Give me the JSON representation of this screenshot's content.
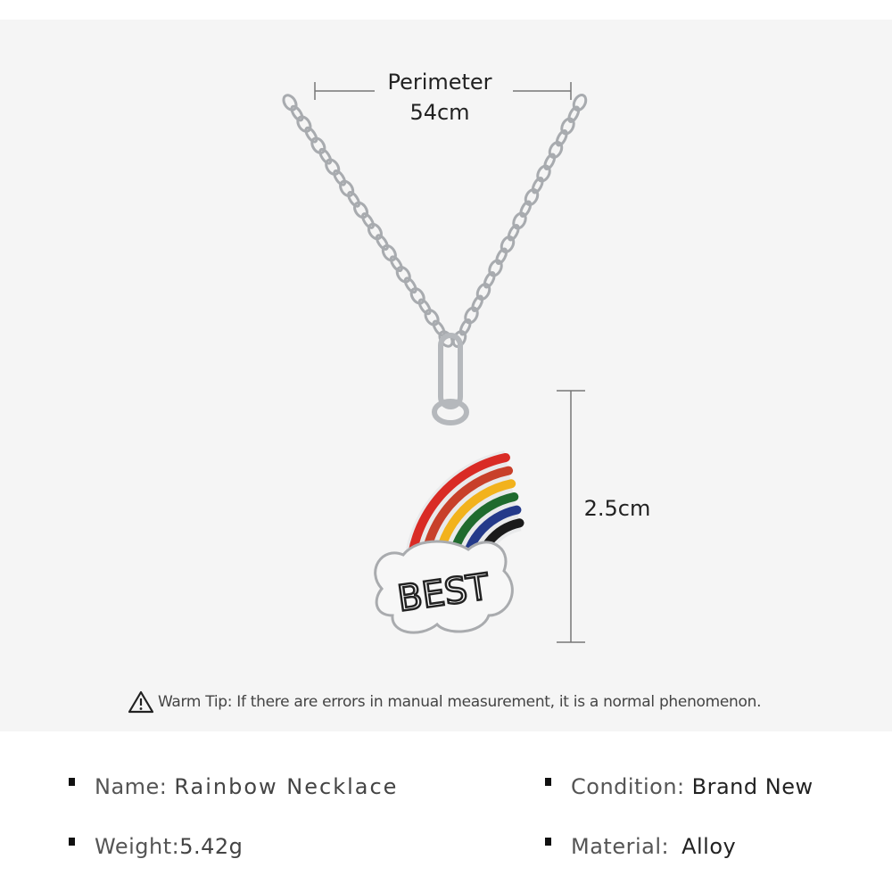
{
  "measurements": {
    "perimeter_label": "Perimeter",
    "perimeter_value": "54cm",
    "pendant_height": "2.5cm"
  },
  "pendant": {
    "engraving": "BEST",
    "rainbow_colors": [
      "#d92b25",
      "#c8402a",
      "#f2b21c",
      "#1f6b2e",
      "#243a8a",
      "#1a1a1a"
    ]
  },
  "tip": {
    "icon": "warning-triangle-icon",
    "text": "Warm Tip: If there are errors in manual measurement, it is a normal phenomenon."
  },
  "specs": [
    {
      "label": "Name:",
      "value": "Rainbow Necklace"
    },
    {
      "label": "Condition:",
      "value": "Brand New"
    },
    {
      "label": "Weight:",
      "value": "5.42g"
    },
    {
      "label": "Material:",
      "value": "Alloy"
    }
  ],
  "colors": {
    "background": "#f5f5f5",
    "text": "#222222"
  }
}
